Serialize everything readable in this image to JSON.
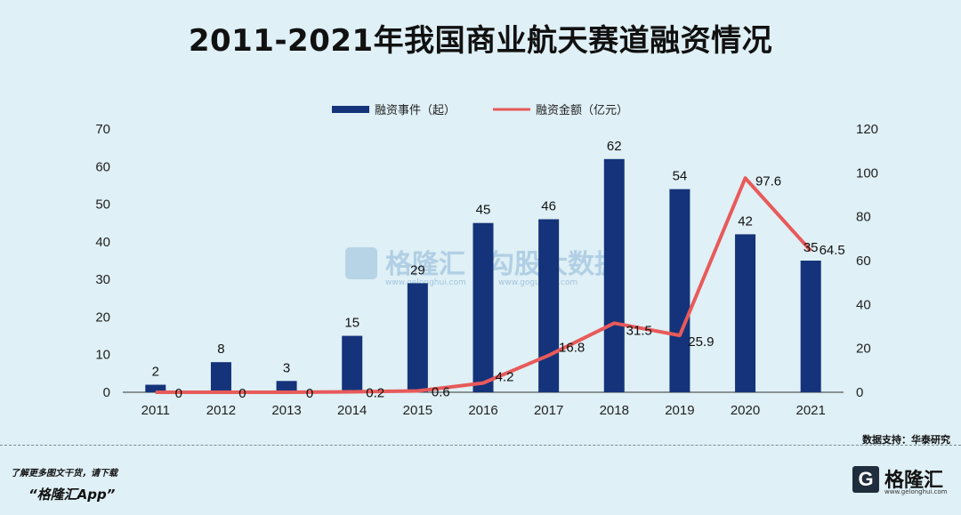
{
  "page": {
    "title": "2011-2021年我国商业航天赛道融资情况",
    "source": "数据支持：华泰研究",
    "footer_line1": "了解更多图文干货，请下载",
    "footer_line2": "“格隆汇App”",
    "logo_name": "格隆汇",
    "logo_url": "www.gelonghui.com",
    "logo_letter": "G",
    "watermark_name": "格隆汇",
    "watermark_name2": "勾股大数据",
    "watermark_url": "www.gelonghui.com",
    "watermark_url2": "www.gogudata.com"
  },
  "colors": {
    "bar": "#14337a",
    "line": "#e85a5a",
    "background": "#dff0f6"
  },
  "chart_data": {
    "type": "bar+line",
    "title": "2011-2021年我国商业航天赛道融资情况",
    "categories": [
      "2011",
      "2012",
      "2013",
      "2014",
      "2015",
      "2016",
      "2017",
      "2018",
      "2019",
      "2020",
      "2021"
    ],
    "series": [
      {
        "name": "融资事件（起）",
        "type": "bar",
        "axis": "left",
        "values": [
          2,
          8,
          3,
          15,
          29,
          45,
          46,
          62,
          54,
          42,
          35
        ],
        "labels": [
          "2",
          "8",
          "3",
          "15",
          "29",
          "45",
          "46",
          "62",
          "54",
          "42",
          "35"
        ]
      },
      {
        "name": "融资金额（亿元）",
        "type": "line",
        "axis": "right",
        "values": [
          0,
          0,
          0,
          0.2,
          0.6,
          4.2,
          16.8,
          31.5,
          25.9,
          97.6,
          64.5
        ],
        "labels": [
          "0",
          "0",
          "0",
          "0.2",
          "0.6",
          "4.2",
          "16.8",
          "31.5",
          "25.9",
          "97.6",
          "64.5"
        ]
      }
    ],
    "y_left": {
      "min": 0,
      "max": 70,
      "ticks": [
        "0",
        "10",
        "20",
        "30",
        "40",
        "50",
        "60",
        "70"
      ]
    },
    "y_right": {
      "min": 0,
      "max": 120,
      "ticks": [
        "0",
        "20",
        "40",
        "60",
        "80",
        "100",
        "120"
      ]
    },
    "legend_position": "top-center",
    "grid": false
  }
}
